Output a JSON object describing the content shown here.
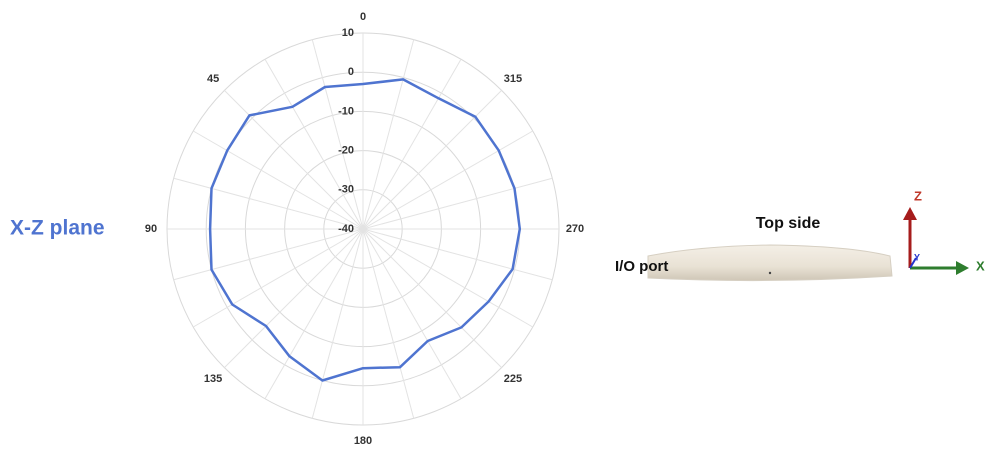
{
  "chart_data": {
    "type": "radar",
    "title": "X-Z plane",
    "categories": [
      "0",
      null,
      null,
      "45",
      null,
      null,
      "90",
      null,
      null,
      "135",
      null,
      null,
      "180",
      null,
      null,
      "225",
      null,
      null,
      "270",
      null,
      null,
      "315",
      null,
      null
    ],
    "series": [
      {
        "color": "#4f74d0",
        "values": [
          -3,
          -2.5,
          -4,
          1,
          0,
          0,
          -1,
          0,
          -1.5,
          -5,
          -2.5,
          0,
          -4.5,
          -3.5,
          -7,
          -4.5,
          -3,
          -0.5,
          0,
          0,
          0,
          0.5,
          -1.5,
          -0.5
        ]
      }
    ],
    "rlim": [
      -40,
      10
    ],
    "rticks": [
      -40,
      -30,
      -20,
      -10,
      0,
      10
    ],
    "grid": true
  },
  "photo": {
    "top_label": "Top side",
    "port_label": "I/O port",
    "axes": {
      "z": "Z",
      "x": "X",
      "y": "Y"
    }
  }
}
